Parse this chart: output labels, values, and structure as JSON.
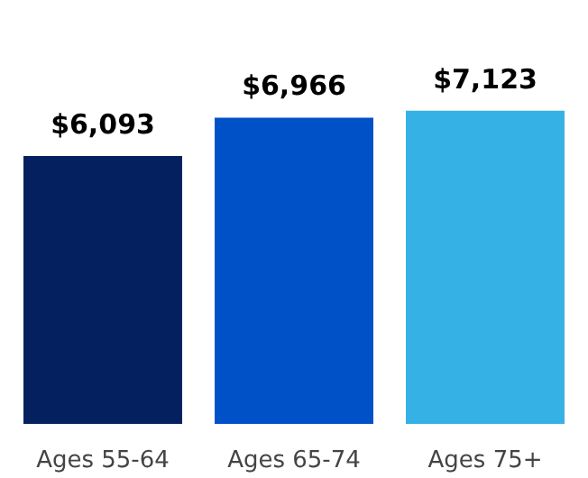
{
  "chart_data": {
    "type": "bar",
    "categories": [
      "Ages 55-64",
      "Ages 65-74",
      "Ages 75+"
    ],
    "values": [
      6093,
      6966,
      7123
    ],
    "colors": [
      "#04205f",
      "#0050c8",
      "#36b1e6"
    ],
    "value_labels": [
      "$6,093",
      "$6,966",
      "$7,123"
    ],
    "tick_labels": "x"
  }
}
